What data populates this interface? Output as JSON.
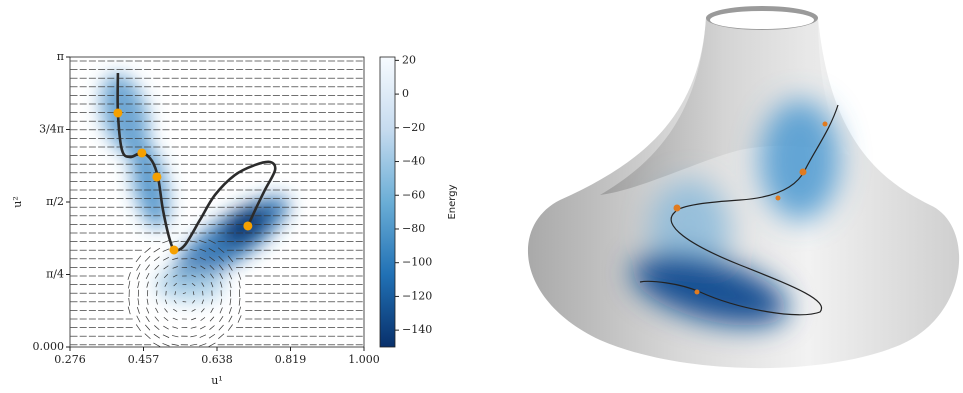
{
  "chart_data": {
    "type": "line",
    "xlabel": "u¹",
    "ylabel": "u²",
    "xlim": [
      0.276,
      1.0
    ],
    "xticks": [
      {
        "value": 0.276,
        "label": "0.276"
      },
      {
        "value": 0.457,
        "label": "0.457"
      },
      {
        "value": 0.638,
        "label": "0.638"
      },
      {
        "value": 0.819,
        "label": "0.819"
      },
      {
        "value": 1.0,
        "label": "1.000"
      }
    ],
    "ylim": [
      0,
      3.14159
    ],
    "yticks": [
      {
        "value": 0,
        "label": "0.000"
      },
      {
        "value": 0.7854,
        "label": "π/4"
      },
      {
        "value": 1.5708,
        "label": "π/2"
      },
      {
        "value": 2.3562,
        "label": "3/4π"
      },
      {
        "value": 3.14159,
        "label": "π"
      }
    ],
    "colorbar": {
      "label": "Energy",
      "lim": [
        -150,
        22
      ],
      "ticks": [
        {
          "value": 20,
          "label": "20"
        },
        {
          "value": 0,
          "label": "0"
        },
        {
          "value": -20,
          "label": "−20"
        },
        {
          "value": -40,
          "label": "−40"
        },
        {
          "value": -60,
          "label": "−60"
        },
        {
          "value": -80,
          "label": "−80"
        },
        {
          "value": -100,
          "label": "−100"
        },
        {
          "value": -120,
          "label": "−120"
        },
        {
          "value": -140,
          "label": "−140"
        }
      ]
    },
    "series": [
      {
        "name": "path",
        "color": "#2b2b2b",
        "x": [
          0.394,
          0.394,
          0.404,
          0.424,
          0.453,
          0.478,
          0.493,
          0.505,
          0.522,
          0.535,
          0.559,
          0.596,
          0.633,
          0.682,
          0.732,
          0.769,
          0.781,
          0.756,
          0.732,
          0.714
        ],
        "values": [
          2.968,
          2.535,
          2.134,
          2.058,
          2.102,
          2.015,
          1.831,
          1.484,
          1.159,
          1.051,
          1.105,
          1.376,
          1.647,
          1.863,
          1.972,
          2.004,
          1.918,
          1.701,
          1.484,
          1.311
        ]
      },
      {
        "name": "points",
        "color": "#f5a000",
        "x": [
          0.394,
          0.453,
          0.49,
          0.532,
          0.714
        ],
        "values": [
          2.535,
          2.102,
          1.842,
          1.051,
          1.311
        ]
      }
    ]
  }
}
